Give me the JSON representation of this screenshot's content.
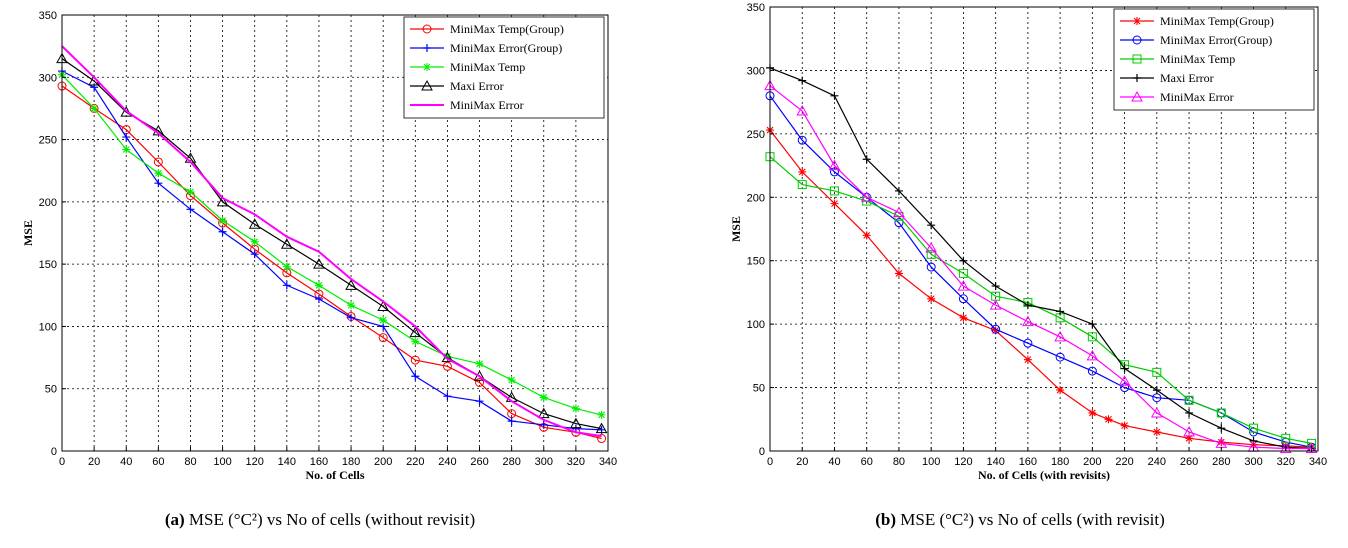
{
  "figures": [
    {
      "caption": {
        "tag": "(a)",
        "text": "MSE (°C²) vs No of cells (without revisit)"
      }
    },
    {
      "caption": {
        "tag": "(b)",
        "text": "MSE (°C²) vs No of cells (with revisit)"
      }
    }
  ],
  "chart_data": [
    {
      "type": "line",
      "xlabel": "No. of Cells",
      "ylabel": "MSE",
      "xlim": [
        0,
        340
      ],
      "ylim": [
        0,
        350
      ],
      "xticks": [
        0,
        20,
        40,
        60,
        80,
        100,
        120,
        140,
        160,
        180,
        200,
        220,
        240,
        260,
        280,
        300,
        320,
        340
      ],
      "yticks": [
        0,
        50,
        100,
        150,
        200,
        250,
        300,
        350
      ],
      "grid": true,
      "legend_position": "top-right",
      "series": [
        {
          "name": "MiniMax Temp(Group)",
          "color": "#ff0000",
          "marker": "circle",
          "x": [
            0,
            20,
            40,
            60,
            80,
            100,
            120,
            140,
            160,
            180,
            200,
            220,
            240,
            260,
            280,
            300,
            320,
            336
          ],
          "y": [
            293,
            275,
            258,
            232,
            205,
            183,
            162,
            143,
            126,
            108,
            91,
            73,
            68,
            55,
            30,
            19,
            15,
            10
          ]
        },
        {
          "name": "MiniMax Error(Group)",
          "color": "#0000ff",
          "marker": "plus",
          "x": [
            0,
            20,
            40,
            60,
            80,
            100,
            120,
            140,
            160,
            180,
            200,
            220,
            240,
            260,
            280,
            300,
            320,
            336
          ],
          "y": [
            305,
            292,
            252,
            215,
            194,
            176,
            158,
            133,
            122,
            107,
            100,
            60,
            44,
            40,
            24,
            21,
            18,
            17
          ]
        },
        {
          "name": "MiniMax Temp",
          "color": "#00ee00",
          "marker": "star",
          "x": [
            0,
            20,
            40,
            60,
            80,
            100,
            120,
            140,
            160,
            180,
            200,
            220,
            240,
            260,
            280,
            300,
            320,
            336
          ],
          "y": [
            302,
            275,
            242,
            223,
            208,
            185,
            168,
            148,
            133,
            117,
            105,
            88,
            76,
            70,
            57,
            43,
            34,
            29
          ]
        },
        {
          "name": "Maxi Error",
          "color": "#000000",
          "marker": "triangle",
          "x": [
            0,
            20,
            40,
            60,
            80,
            100,
            120,
            140,
            160,
            180,
            200,
            220,
            240,
            260,
            280,
            300,
            320,
            336
          ],
          "y": [
            315,
            297,
            272,
            257,
            235,
            200,
            182,
            166,
            150,
            133,
            116,
            95,
            75,
            60,
            43,
            30,
            22,
            18
          ]
        },
        {
          "name": "MiniMax Error",
          "color": "#ff00ff",
          "marker": "none",
          "x": [
            0,
            20,
            40,
            60,
            80,
            100,
            120,
            140,
            160,
            180,
            200,
            220,
            240,
            260,
            280,
            300,
            320,
            336
          ],
          "y": [
            325,
            300,
            273,
            255,
            232,
            203,
            190,
            172,
            160,
            138,
            120,
            100,
            74,
            60,
            40,
            25,
            15,
            12
          ]
        }
      ]
    },
    {
      "type": "line",
      "xlabel": "No. of Cells (with revisits)",
      "ylabel": "MSE",
      "xlim": [
        0,
        340
      ],
      "ylim": [
        0,
        350
      ],
      "xticks": [
        0,
        20,
        40,
        60,
        80,
        100,
        120,
        140,
        160,
        180,
        200,
        220,
        240,
        260,
        280,
        300,
        320,
        340
      ],
      "yticks": [
        0,
        50,
        100,
        150,
        200,
        250,
        300,
        350
      ],
      "grid": true,
      "legend_position": "top-right",
      "series": [
        {
          "name": "MiniMax Temp(Group)",
          "color": "#ff0000",
          "marker": "star",
          "x": [
            0,
            20,
            40,
            60,
            80,
            100,
            120,
            140,
            160,
            180,
            200,
            210,
            220,
            240,
            260,
            280,
            300,
            320,
            336
          ],
          "y": [
            253,
            220,
            195,
            170,
            140,
            120,
            105,
            95,
            72,
            48,
            30,
            25,
            20,
            15,
            10,
            7,
            5,
            4,
            3
          ]
        },
        {
          "name": "MiniMax Error(Group)",
          "color": "#0000ff",
          "marker": "circle",
          "x": [
            0,
            20,
            40,
            60,
            80,
            100,
            120,
            140,
            160,
            180,
            200,
            220,
            240,
            260,
            280,
            300,
            320,
            336
          ],
          "y": [
            280,
            245,
            220,
            200,
            180,
            145,
            120,
            96,
            85,
            74,
            63,
            50,
            42,
            40,
            30,
            15,
            7,
            3
          ]
        },
        {
          "name": "MiniMax Temp",
          "color": "#00cc00",
          "marker": "square",
          "x": [
            0,
            20,
            40,
            60,
            80,
            100,
            120,
            140,
            160,
            180,
            200,
            220,
            240,
            260,
            280,
            300,
            320,
            336
          ],
          "y": [
            232,
            210,
            205,
            197,
            185,
            155,
            140,
            122,
            117,
            105,
            90,
            68,
            62,
            40,
            30,
            18,
            10,
            6
          ]
        },
        {
          "name": "Maxi Error",
          "color": "#000000",
          "marker": "plus",
          "x": [
            0,
            20,
            40,
            60,
            80,
            100,
            120,
            140,
            160,
            180,
            200,
            220,
            240,
            260,
            280,
            300,
            320,
            336
          ],
          "y": [
            302,
            292,
            280,
            230,
            205,
            178,
            150,
            130,
            115,
            110,
            100,
            65,
            48,
            30,
            18,
            8,
            3,
            2
          ]
        },
        {
          "name": "MiniMax Error",
          "color": "#ff00ff",
          "marker": "triangle",
          "x": [
            0,
            20,
            40,
            60,
            80,
            100,
            120,
            140,
            160,
            180,
            200,
            220,
            240,
            260,
            280,
            300,
            320,
            336
          ],
          "y": [
            288,
            268,
            225,
            200,
            188,
            160,
            130,
            115,
            102,
            90,
            75,
            55,
            30,
            15,
            6,
            3,
            2,
            2
          ]
        }
      ]
    }
  ]
}
